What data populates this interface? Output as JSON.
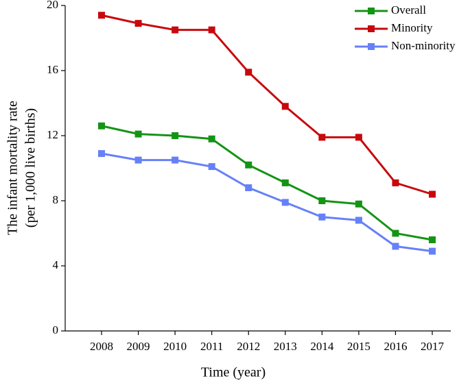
{
  "chart_data": {
    "type": "line",
    "ylabel": [
      "The  infant mortality rate",
      "(per 1,000 live births)"
    ],
    "xlabel": "Time (year)",
    "categories": [
      "2008",
      "2009",
      "2010",
      "2011",
      "2012",
      "2013",
      "2014",
      "2015",
      "2016",
      "2017"
    ],
    "series": [
      {
        "name": "Overall",
        "color": "#149414",
        "values": [
          12.6,
          12.1,
          12.0,
          11.8,
          10.2,
          9.1,
          8.0,
          7.8,
          6.0,
          5.6
        ]
      },
      {
        "name": "Minority",
        "color": "#c8080c",
        "values": [
          19.4,
          18.9,
          18.5,
          18.5,
          15.9,
          13.8,
          11.9,
          11.9,
          9.1,
          8.4
        ]
      },
      {
        "name": "Non-minority",
        "color": "#6680f8",
        "values": [
          10.9,
          10.5,
          10.5,
          10.1,
          8.8,
          7.9,
          7.0,
          6.8,
          5.2,
          4.9
        ]
      }
    ],
    "ylim": [
      0,
      20
    ],
    "yticks": [
      0,
      4,
      8,
      12,
      16,
      20
    ],
    "legend": "top-right"
  }
}
